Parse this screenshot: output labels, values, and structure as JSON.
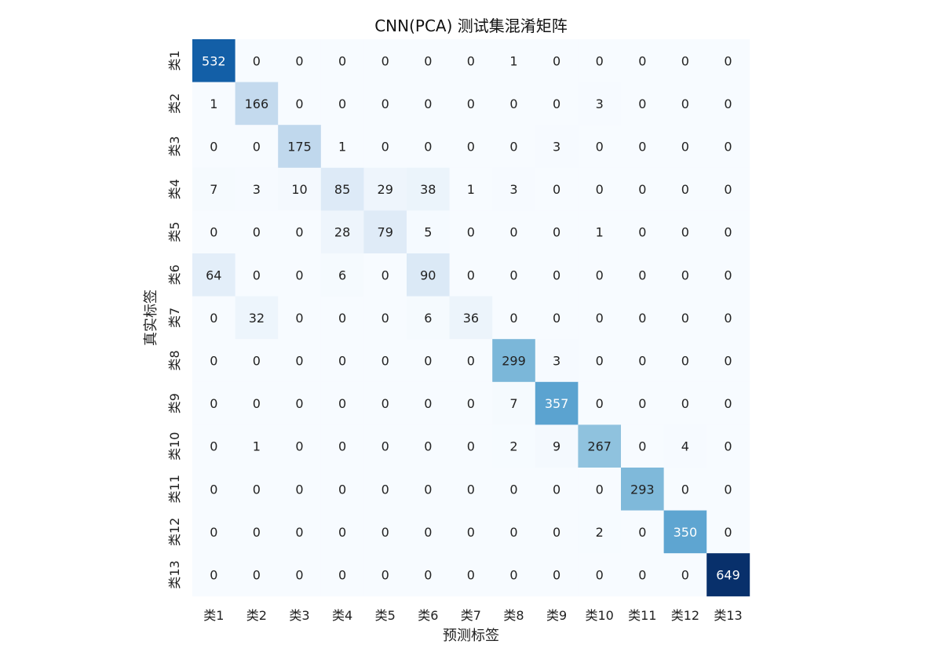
{
  "chart_data": {
    "type": "heatmap",
    "title": "CNN(PCA) 测试集混淆矩阵",
    "xlabel": "预测标签",
    "ylabel": "真实标签",
    "x_categories": [
      "类1",
      "类2",
      "类3",
      "类4",
      "类5",
      "类6",
      "类7",
      "类8",
      "类9",
      "类10",
      "类11",
      "类12",
      "类13"
    ],
    "y_categories": [
      "类1",
      "类2",
      "类3",
      "类4",
      "类5",
      "类6",
      "类7",
      "类8",
      "类9",
      "类10",
      "类11",
      "类12",
      "类13"
    ],
    "matrix": [
      [
        532,
        0,
        0,
        0,
        0,
        0,
        0,
        1,
        0,
        0,
        0,
        0,
        0
      ],
      [
        1,
        166,
        0,
        0,
        0,
        0,
        0,
        0,
        0,
        3,
        0,
        0,
        0
      ],
      [
        0,
        0,
        175,
        1,
        0,
        0,
        0,
        0,
        3,
        0,
        0,
        0,
        0
      ],
      [
        7,
        3,
        10,
        85,
        29,
        38,
        1,
        3,
        0,
        0,
        0,
        0,
        0
      ],
      [
        0,
        0,
        0,
        28,
        79,
        5,
        0,
        0,
        0,
        1,
        0,
        0,
        0
      ],
      [
        64,
        0,
        0,
        6,
        0,
        90,
        0,
        0,
        0,
        0,
        0,
        0,
        0
      ],
      [
        0,
        32,
        0,
        0,
        0,
        6,
        36,
        0,
        0,
        0,
        0,
        0,
        0
      ],
      [
        0,
        0,
        0,
        0,
        0,
        0,
        0,
        299,
        3,
        0,
        0,
        0,
        0
      ],
      [
        0,
        0,
        0,
        0,
        0,
        0,
        0,
        7,
        357,
        0,
        0,
        0,
        0
      ],
      [
        0,
        1,
        0,
        0,
        0,
        0,
        0,
        2,
        9,
        267,
        0,
        4,
        0
      ],
      [
        0,
        0,
        0,
        0,
        0,
        0,
        0,
        0,
        0,
        0,
        293,
        0,
        0
      ],
      [
        0,
        0,
        0,
        0,
        0,
        0,
        0,
        0,
        0,
        2,
        0,
        350,
        0
      ],
      [
        0,
        0,
        0,
        0,
        0,
        0,
        0,
        0,
        0,
        0,
        0,
        0,
        649
      ]
    ],
    "colormap": "Blues",
    "vmin": 0,
    "vmax": 649,
    "annotated": true,
    "colorbar": false
  }
}
